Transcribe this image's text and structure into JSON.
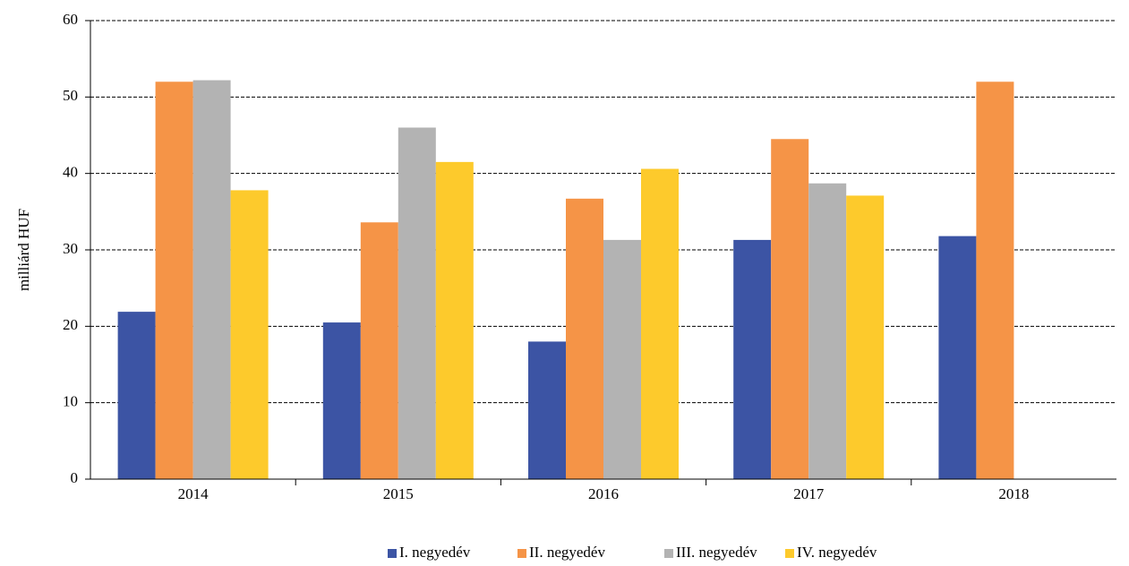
{
  "chart_data": {
    "type": "bar",
    "y_label": "milliárd HUF",
    "categories": [
      "2014",
      "2015",
      "2016",
      "2017",
      "2018"
    ],
    "series": [
      {
        "name": "I. negyedév",
        "color": "#3c54a4",
        "values": [
          21.9,
          20.5,
          18.0,
          31.3,
          31.8
        ]
      },
      {
        "name": "II. negyedév",
        "color": "#f59447",
        "values": [
          52.0,
          33.6,
          36.7,
          44.5,
          52.0
        ]
      },
      {
        "name": "III. negyedév",
        "color": "#b3b3b3",
        "values": [
          52.2,
          46.0,
          31.3,
          38.7,
          null
        ]
      },
      {
        "name": "IV. negyedév",
        "color": "#fdca2c",
        "values": [
          37.8,
          41.5,
          40.6,
          37.1,
          null
        ]
      }
    ],
    "ylim": [
      0,
      60
    ],
    "yticks": [
      0,
      10,
      20,
      30,
      40,
      50,
      60
    ],
    "grid": true,
    "legend": "bottom"
  }
}
